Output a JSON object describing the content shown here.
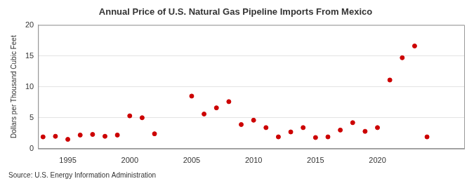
{
  "chart_data": {
    "type": "scatter",
    "title": "Annual Price of U.S. Natural Gas Pipeline Imports From Mexico",
    "y_label": "Dollars per Thousand Cubic Feet",
    "source": "Source: U.S. Energy Information Administration",
    "x": [
      1993,
      1994,
      1995,
      1996,
      1997,
      1998,
      1999,
      2000,
      2001,
      2002,
      2005,
      2006,
      2007,
      2008,
      2009,
      2010,
      2011,
      2012,
      2013,
      2014,
      2015,
      2016,
      2017,
      2018,
      2019,
      2020,
      2021,
      2022,
      2023,
      2024
    ],
    "values": [
      1.9,
      2.0,
      1.5,
      2.2,
      2.3,
      2.0,
      2.2,
      5.3,
      5.0,
      2.4,
      8.5,
      5.6,
      6.6,
      7.6,
      3.9,
      4.6,
      3.4,
      1.9,
      2.7,
      3.4,
      1.8,
      1.9,
      3.0,
      4.2,
      2.8,
      3.4,
      11.1,
      14.7,
      16.6,
      1.9
    ],
    "color": "#cc0000",
    "marker": "circle",
    "xlim": [
      1992.6,
      2027
    ],
    "xticks": [
      1995,
      2000,
      2005,
      2010,
      2015,
      2020
    ],
    "ylim": [
      0,
      20
    ],
    "yticks": [
      0,
      5,
      10,
      15,
      20
    ],
    "grid": true
  }
}
